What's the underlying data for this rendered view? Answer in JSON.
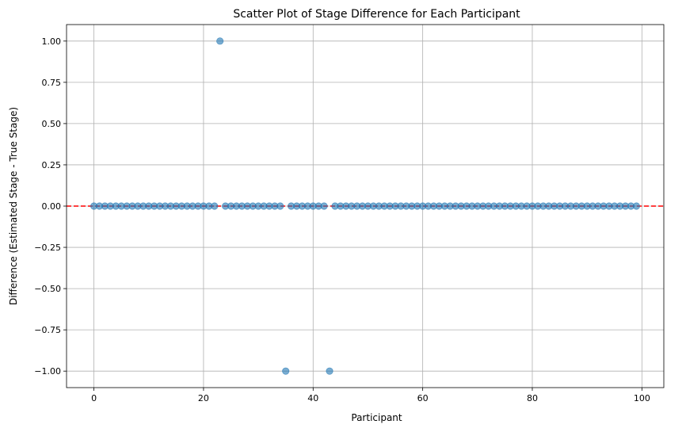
{
  "chart_data": {
    "type": "scatter",
    "title": "Scatter Plot of Stage Difference for Each Participant",
    "xlabel": "Participant",
    "ylabel": "Difference (Estimated Stage - True Stage)",
    "xlim": [
      -5,
      104
    ],
    "ylim": [
      -1.1,
      1.1
    ],
    "xticks": [
      0,
      20,
      40,
      60,
      80,
      100
    ],
    "xtick_labels": [
      "0",
      "20",
      "40",
      "60",
      "80",
      "100"
    ],
    "yticks": [
      1.0,
      0.75,
      0.5,
      0.25,
      0.0,
      -0.25,
      -0.5,
      -0.75,
      -1.0
    ],
    "ytick_labels": [
      "1.00",
      "0.75",
      "0.50",
      "0.25",
      "0.00",
      "−0.25",
      "−0.50",
      "−0.75",
      "−1.00"
    ],
    "grid": true,
    "point_color": "#1f77b4",
    "reference_line": {
      "y": 0,
      "color": "#ff0000",
      "style": "dashed"
    },
    "x": [
      0,
      1,
      2,
      3,
      4,
      5,
      6,
      7,
      8,
      9,
      10,
      11,
      12,
      13,
      14,
      15,
      16,
      17,
      18,
      19,
      20,
      21,
      22,
      23,
      24,
      25,
      26,
      27,
      28,
      29,
      30,
      31,
      32,
      33,
      34,
      35,
      36,
      37,
      38,
      39,
      40,
      41,
      42,
      43,
      44,
      45,
      46,
      47,
      48,
      49,
      50,
      51,
      52,
      53,
      54,
      55,
      56,
      57,
      58,
      59,
      60,
      61,
      62,
      63,
      64,
      65,
      66,
      67,
      68,
      69,
      70,
      71,
      72,
      73,
      74,
      75,
      76,
      77,
      78,
      79,
      80,
      81,
      82,
      83,
      84,
      85,
      86,
      87,
      88,
      89,
      90,
      91,
      92,
      93,
      94,
      95,
      96,
      97,
      98,
      99
    ],
    "y": [
      0,
      0,
      0,
      0,
      0,
      0,
      0,
      0,
      0,
      0,
      0,
      0,
      0,
      0,
      0,
      0,
      0,
      0,
      0,
      0,
      0,
      0,
      0,
      1,
      0,
      0,
      0,
      0,
      0,
      0,
      0,
      0,
      0,
      0,
      0,
      -1,
      0,
      0,
      0,
      0,
      0,
      0,
      0,
      -1,
      0,
      0,
      0,
      0,
      0,
      0,
      0,
      0,
      0,
      0,
      0,
      0,
      0,
      0,
      0,
      0,
      0,
      0,
      0,
      0,
      0,
      0,
      0,
      0,
      0,
      0,
      0,
      0,
      0,
      0,
      0,
      0,
      0,
      0,
      0,
      0,
      0,
      0,
      0,
      0,
      0,
      0,
      0,
      0,
      0,
      0,
      0,
      0,
      0,
      0,
      0,
      0,
      0,
      0,
      0,
      0
    ]
  }
}
